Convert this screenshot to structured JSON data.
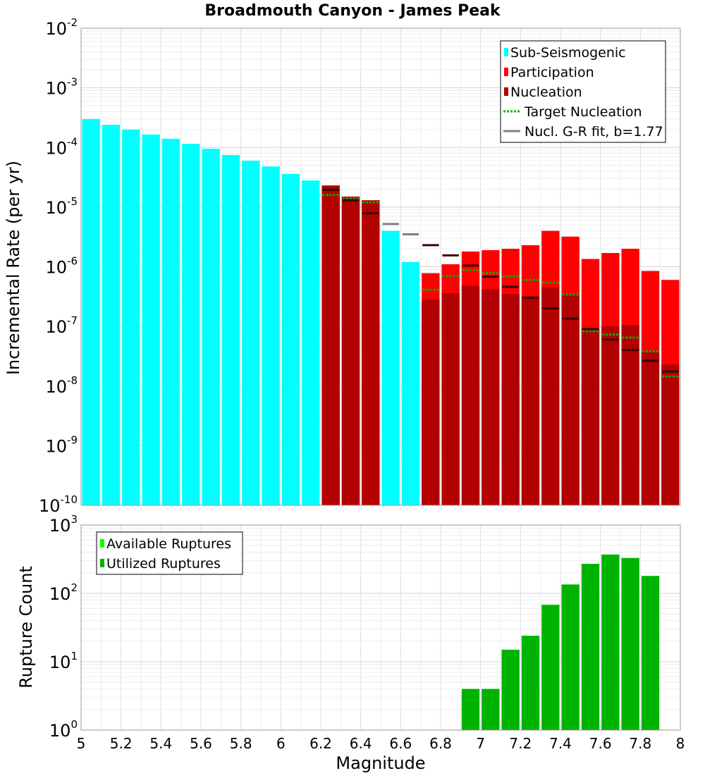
{
  "chart_data": [
    {
      "type": "bar",
      "title": "Broadmouth Canyon - James Peak",
      "ylabel": "Incremental Rate (per yr)",
      "xlabel": "",
      "x_range": [
        5,
        8
      ],
      "y_scale": "log",
      "ylim": [
        1e-10,
        0.01
      ],
      "y_ticks": [
        {
          "value": 1e-10,
          "base": "10",
          "exp": "-10"
        },
        {
          "value": 1e-09,
          "base": "10",
          "exp": "-9"
        },
        {
          "value": 1e-08,
          "base": "10",
          "exp": "-8"
        },
        {
          "value": 1e-07,
          "base": "10",
          "exp": "-7"
        },
        {
          "value": 1e-06,
          "base": "10",
          "exp": "-6"
        },
        {
          "value": 1e-05,
          "base": "10",
          "exp": "-5"
        },
        {
          "value": 0.0001,
          "base": "10",
          "exp": "-4"
        },
        {
          "value": 0.001,
          "base": "10",
          "exp": "-3"
        },
        {
          "value": 0.01,
          "base": "10",
          "exp": "-2"
        }
      ],
      "grid": true,
      "legend_position": "top-right",
      "legend": [
        {
          "label": "Sub-Seismogenic",
          "kind": "bar",
          "color": "#00ffff"
        },
        {
          "label": "Participation",
          "kind": "bar",
          "color": "#ff0000"
        },
        {
          "label": "Nucleation",
          "kind": "bar",
          "color": "#b30000"
        },
        {
          "label": "Target Nucleation",
          "kind": "dotted-line",
          "color": "#00b300"
        },
        {
          "label": "Nucl. G-R fit, b=1.77",
          "kind": "line",
          "color": "#808080"
        }
      ],
      "series": [
        {
          "name": "Sub-Seismogenic",
          "color": "#00ffff",
          "points": [
            {
              "x": 5.05,
              "y": 0.0003
            },
            {
              "x": 5.15,
              "y": 0.00024
            },
            {
              "x": 5.25,
              "y": 0.0002
            },
            {
              "x": 5.35,
              "y": 0.000165
            },
            {
              "x": 5.45,
              "y": 0.00014
            },
            {
              "x": 5.55,
              "y": 0.000115
            },
            {
              "x": 5.65,
              "y": 9.5e-05
            },
            {
              "x": 5.75,
              "y": 7.5e-05
            },
            {
              "x": 5.85,
              "y": 6e-05
            },
            {
              "x": 5.95,
              "y": 4.8e-05
            },
            {
              "x": 6.05,
              "y": 3.6e-05
            },
            {
              "x": 6.15,
              "y": 2.8e-05
            },
            {
              "x": 6.55,
              "y": 4e-06
            },
            {
              "x": 6.65,
              "y": 1.2e-06
            }
          ]
        },
        {
          "name": "Participation",
          "color": "#ff0000",
          "points": [
            {
              "x": 6.25,
              "y": 2.3e-05
            },
            {
              "x": 6.35,
              "y": 1.5e-05
            },
            {
              "x": 6.45,
              "y": 1.3e-05
            },
            {
              "x": 6.75,
              "y": 7.8e-07
            },
            {
              "x": 6.85,
              "y": 1.1e-06
            },
            {
              "x": 6.95,
              "y": 1.8e-06
            },
            {
              "x": 7.05,
              "y": 1.9e-06
            },
            {
              "x": 7.15,
              "y": 2e-06
            },
            {
              "x": 7.25,
              "y": 2.3e-06
            },
            {
              "x": 7.35,
              "y": 4e-06
            },
            {
              "x": 7.45,
              "y": 3.2e-06
            },
            {
              "x": 7.55,
              "y": 1.35e-06
            },
            {
              "x": 7.65,
              "y": 1.7e-06
            },
            {
              "x": 7.75,
              "y": 2e-06
            },
            {
              "x": 7.85,
              "y": 8.5e-07
            },
            {
              "x": 7.95,
              "y": 6e-07
            }
          ]
        },
        {
          "name": "Nucleation",
          "color": "#b30000",
          "points": [
            {
              "x": 6.25,
              "y": 2.3e-05
            },
            {
              "x": 6.35,
              "y": 1.5e-05
            },
            {
              "x": 6.45,
              "y": 1.3e-05
            },
            {
              "x": 6.75,
              "y": 2.8e-07
            },
            {
              "x": 6.85,
              "y": 3.6e-07
            },
            {
              "x": 6.95,
              "y": 4.8e-07
            },
            {
              "x": 7.05,
              "y": 4.2e-07
            },
            {
              "x": 7.15,
              "y": 3.5e-07
            },
            {
              "x": 7.25,
              "y": 3.2e-07
            },
            {
              "x": 7.35,
              "y": 4.5e-07
            },
            {
              "x": 7.45,
              "y": 3.5e-07
            },
            {
              "x": 7.55,
              "y": 9.2e-08
            },
            {
              "x": 7.65,
              "y": 1e-07
            },
            {
              "x": 7.75,
              "y": 1.05e-07
            },
            {
              "x": 7.85,
              "y": 3.8e-08
            },
            {
              "x": 7.95,
              "y": 2.3e-08
            }
          ]
        },
        {
          "name": "Target Nucleation",
          "color": "#00b300",
          "points": [
            {
              "x": 6.25,
              "y": 1.6e-05
            },
            {
              "x": 6.35,
              "y": 1.4e-05
            },
            {
              "x": 6.45,
              "y": 1.2e-05
            },
            {
              "x": 6.75,
              "y": 4.1e-07
            },
            {
              "x": 6.85,
              "y": 7e-07
            },
            {
              "x": 6.95,
              "y": 8.8e-07
            },
            {
              "x": 7.05,
              "y": 7.8e-07
            },
            {
              "x": 7.15,
              "y": 6.9e-07
            },
            {
              "x": 7.25,
              "y": 6e-07
            },
            {
              "x": 7.35,
              "y": 5.4e-07
            },
            {
              "x": 7.45,
              "y": 3.4e-07
            },
            {
              "x": 7.55,
              "y": 8.3e-08
            },
            {
              "x": 7.65,
              "y": 7.3e-08
            },
            {
              "x": 7.75,
              "y": 6.5e-08
            },
            {
              "x": 7.85,
              "y": 3.8e-08
            },
            {
              "x": 7.95,
              "y": 1.45e-08
            }
          ]
        },
        {
          "name": "Nucl. G-R fit, b=1.77",
          "color": "#808080",
          "points": [
            {
              "x": 6.25,
              "y": 1.95e-05
            },
            {
              "x": 6.35,
              "y": 1.3e-05
            },
            {
              "x": 6.45,
              "y": 7.9e-06
            },
            {
              "x": 6.55,
              "y": 5.2e-06
            },
            {
              "x": 6.65,
              "y": 3.5e-06
            },
            {
              "x": 6.75,
              "y": 2.3e-06
            },
            {
              "x": 6.85,
              "y": 1.55e-06
            },
            {
              "x": 6.95,
              "y": 1.05e-06
            },
            {
              "x": 7.05,
              "y": 6.8e-07
            },
            {
              "x": 7.15,
              "y": 4.6e-07
            },
            {
              "x": 7.25,
              "y": 3e-07
            },
            {
              "x": 7.35,
              "y": 2e-07
            },
            {
              "x": 7.45,
              "y": 1.35e-07
            },
            {
              "x": 7.55,
              "y": 9e-08
            },
            {
              "x": 7.65,
              "y": 6e-08
            },
            {
              "x": 7.75,
              "y": 4e-08
            },
            {
              "x": 7.85,
              "y": 2.65e-08
            },
            {
              "x": 7.95,
              "y": 1.75e-08
            }
          ]
        }
      ]
    },
    {
      "type": "bar",
      "title": "",
      "ylabel": "Rupture Count",
      "xlabel": "Magnitude",
      "x_range": [
        5,
        8
      ],
      "x_ticks": [
        "5",
        "5.2",
        "5.4",
        "5.6",
        "5.8",
        "6",
        "6.2",
        "6.4",
        "6.6",
        "6.8",
        "7",
        "7.2",
        "7.4",
        "7.6",
        "7.8",
        "8"
      ],
      "y_scale": "log",
      "ylim": [
        1,
        1000
      ],
      "y_ticks": [
        {
          "value": 1,
          "base": "10",
          "exp": "0"
        },
        {
          "value": 10,
          "base": "10",
          "exp": "1"
        },
        {
          "value": 100,
          "base": "10",
          "exp": "2"
        },
        {
          "value": 1000,
          "base": "10",
          "exp": "3"
        }
      ],
      "grid": true,
      "legend_position": "top-left",
      "legend": [
        {
          "label": "Available Ruptures",
          "kind": "bar",
          "color": "#00ff00"
        },
        {
          "label": "Utilized Ruptures",
          "kind": "bar",
          "color": "#00b300"
        }
      ],
      "series": [
        {
          "name": "Available Ruptures",
          "color": "#00ff00",
          "points": []
        },
        {
          "name": "Utilized Ruptures",
          "color": "#00b300",
          "points": [
            {
              "x": 6.35,
              "y": 1
            },
            {
              "x": 6.75,
              "y": 1
            },
            {
              "x": 6.85,
              "y": 1
            },
            {
              "x": 6.95,
              "y": 4
            },
            {
              "x": 7.05,
              "y": 4
            },
            {
              "x": 7.15,
              "y": 15
            },
            {
              "x": 7.25,
              "y": 24
            },
            {
              "x": 7.35,
              "y": 68
            },
            {
              "x": 7.45,
              "y": 135
            },
            {
              "x": 7.55,
              "y": 270
            },
            {
              "x": 7.65,
              "y": 370
            },
            {
              "x": 7.75,
              "y": 330
            },
            {
              "x": 7.85,
              "y": 180
            }
          ]
        }
      ]
    }
  ]
}
